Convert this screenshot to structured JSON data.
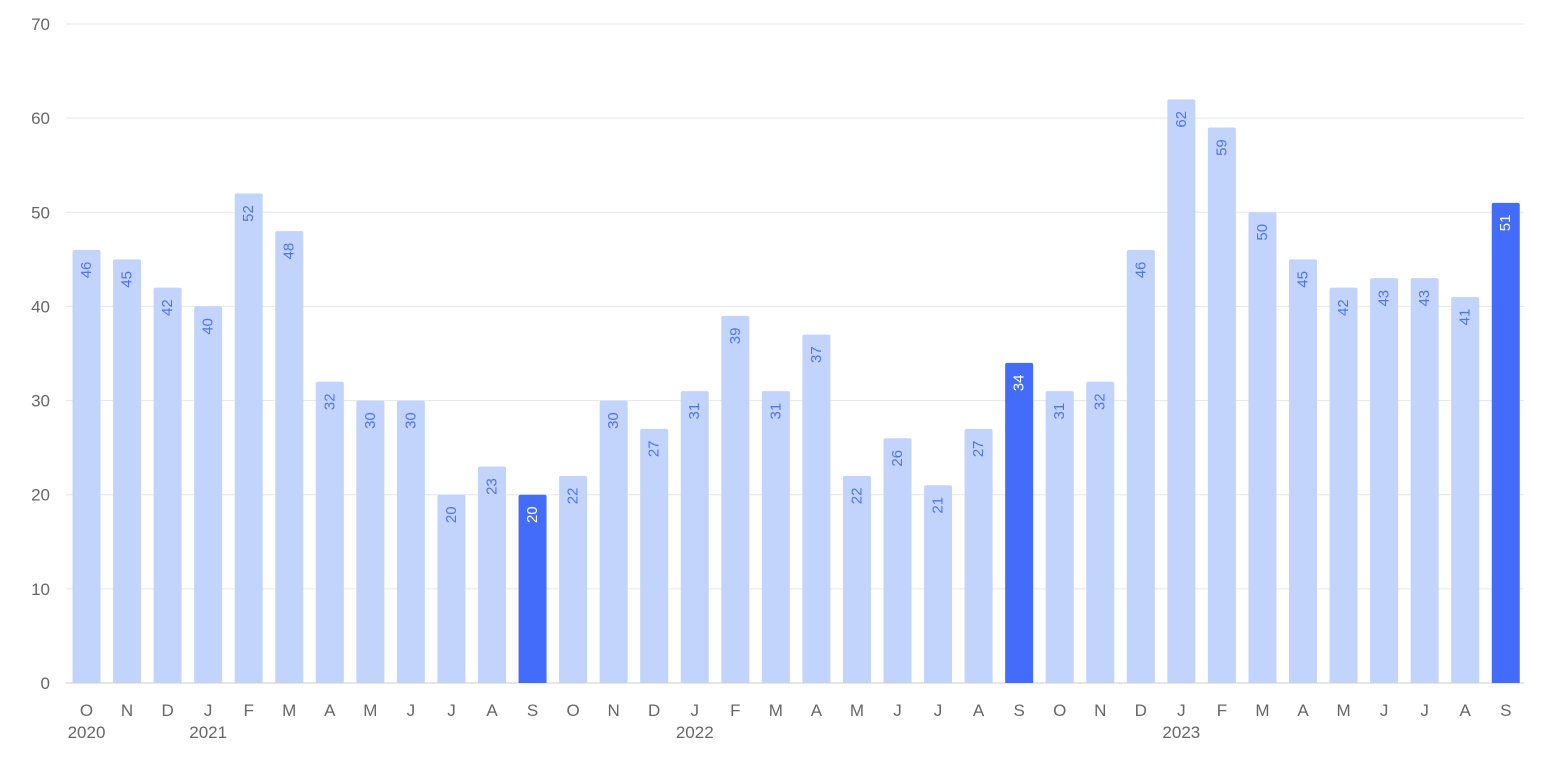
{
  "chart_data": {
    "type": "bar",
    "title": "",
    "xlabel": "",
    "ylabel": "",
    "ylim": [
      0,
      70
    ],
    "yticks": [
      0,
      10,
      20,
      30,
      40,
      50,
      60,
      70
    ],
    "grid": true,
    "legend": "none",
    "categories": [
      "O",
      "N",
      "D",
      "J",
      "F",
      "M",
      "A",
      "M",
      "J",
      "J",
      "A",
      "S",
      "O",
      "N",
      "D",
      "J",
      "F",
      "M",
      "A",
      "M",
      "J",
      "J",
      "A",
      "S",
      "O",
      "N",
      "D",
      "J",
      "F",
      "M",
      "A",
      "M",
      "J",
      "J",
      "A",
      "S"
    ],
    "dates": [
      "2020-10",
      "2020-11",
      "2020-12",
      "2021-01",
      "2021-02",
      "2021-03",
      "2021-04",
      "2021-05",
      "2021-06",
      "2021-07",
      "2021-08",
      "2021-09",
      "2021-10",
      "2021-11",
      "2021-12",
      "2022-01",
      "2022-02",
      "2022-03",
      "2022-04",
      "2022-05",
      "2022-06",
      "2022-07",
      "2022-08",
      "2022-09",
      "2022-10",
      "2022-11",
      "2022-12",
      "2023-01",
      "2023-02",
      "2023-03",
      "2023-04",
      "2023-05",
      "2023-06",
      "2023-07",
      "2023-08",
      "2023-09"
    ],
    "year_labels": [
      {
        "index": 0,
        "label": "2020"
      },
      {
        "index": 3,
        "label": "2021"
      },
      {
        "index": 15,
        "label": "2022"
      },
      {
        "index": 27,
        "label": "2023"
      }
    ],
    "values": [
      46,
      45,
      42,
      40,
      52,
      48,
      32,
      30,
      30,
      20,
      23,
      20,
      22,
      30,
      27,
      31,
      39,
      31,
      37,
      22,
      26,
      21,
      27,
      34,
      31,
      32,
      46,
      62,
      59,
      50,
      45,
      42,
      43,
      43,
      41,
      51
    ],
    "highlighted_indices": [
      11,
      23,
      35
    ],
    "colors": {
      "bar": "#c2d3fc",
      "bar_highlight": "#426cf9",
      "label": "#4f74f3",
      "label_highlight": "#ffffff"
    }
  }
}
